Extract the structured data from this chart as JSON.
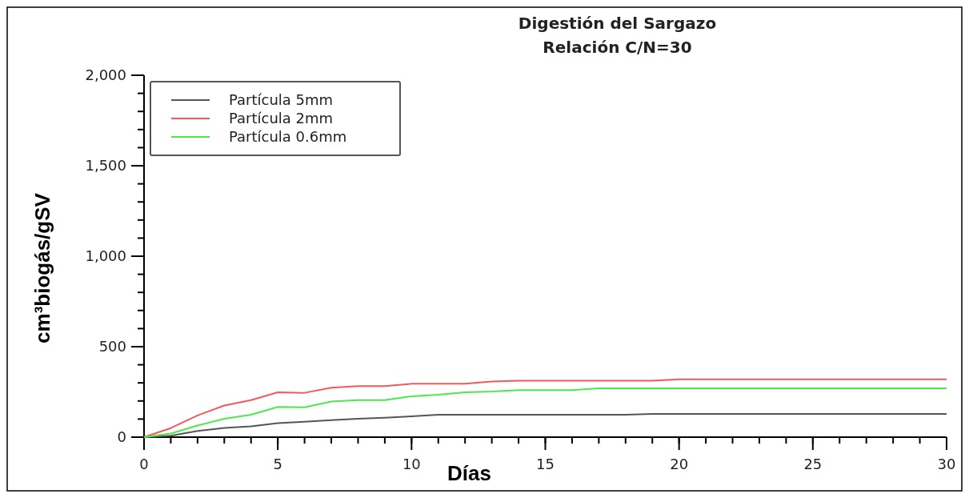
{
  "chart_data": {
    "type": "line",
    "title": "Digestión del Sargazo",
    "subtitle": "Relación C/N=30",
    "xlabel": "Días",
    "ylabel": "cm³biogás/gSV",
    "xlim": [
      0,
      30
    ],
    "xticks": [
      0,
      5,
      10,
      15,
      20,
      25,
      30
    ],
    "ylim": [
      0,
      2000
    ],
    "yticks": [
      {
        "value": 0,
        "label": "0"
      },
      {
        "value": 500,
        "label": "500"
      },
      {
        "value": 1000,
        "label": "1,000"
      },
      {
        "value": 1500,
        "label": "1,500"
      },
      {
        "value": 2000,
        "label": "2,000"
      }
    ],
    "grid": false,
    "legend": "top left",
    "marker": "none",
    "line_style": "solid",
    "series": [
      {
        "name": "Partícula 5mm",
        "color": "#555555",
        "x": [
          0,
          1,
          2,
          3,
          4,
          5,
          6,
          7,
          8,
          9,
          10,
          11,
          18,
          19,
          30
        ],
        "values": [
          0,
          8,
          34,
          51,
          60,
          77,
          85,
          94,
          102,
          107,
          115,
          124,
          124,
          128,
          128
        ]
      },
      {
        "name": "Partícula 2mm",
        "color": "#f25a5a",
        "x": [
          0,
          1,
          2,
          3,
          4,
          5,
          6,
          7,
          8,
          9,
          10,
          12,
          13,
          14,
          19,
          20,
          30
        ],
        "values": [
          0,
          50,
          120,
          175,
          205,
          248,
          245,
          273,
          282,
          282,
          295,
          295,
          308,
          312,
          312,
          320,
          320
        ]
      },
      {
        "name": "Partícula 0.6mm",
        "color": "#4ce84c",
        "x": [
          0,
          1,
          2,
          3,
          4,
          5,
          6,
          7,
          8,
          9,
          10,
          11,
          12,
          13,
          14,
          16,
          17,
          30
        ],
        "values": [
          0,
          20,
          64,
          102,
          124,
          167,
          165,
          197,
          205,
          205,
          226,
          235,
          248,
          252,
          260,
          260,
          270,
          270
        ]
      }
    ]
  }
}
